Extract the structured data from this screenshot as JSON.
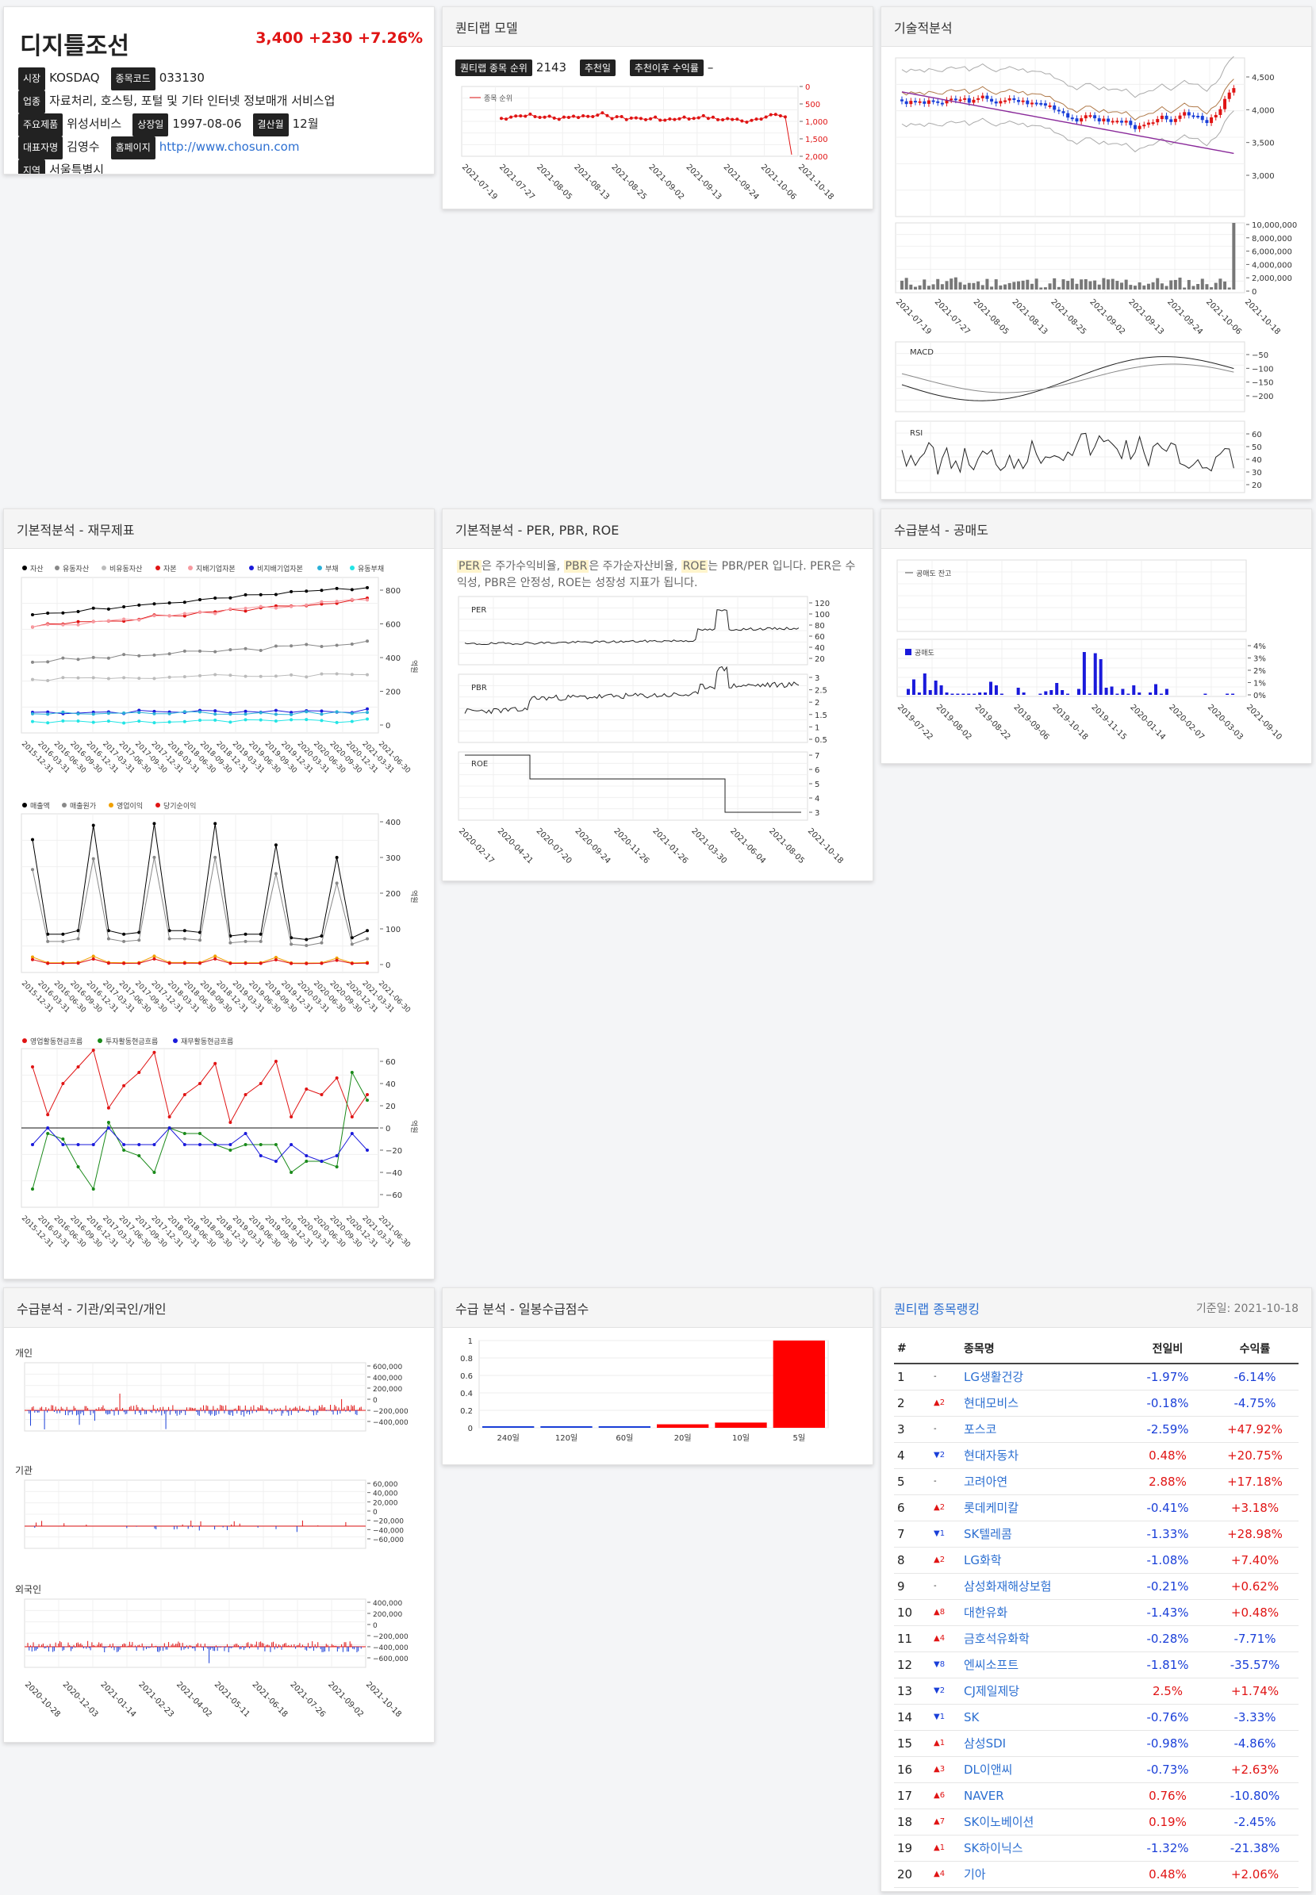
{
  "stock": {
    "name": "디지틀조선",
    "price": "3,400",
    "change": "+230",
    "change_pct": "+7.26%",
    "market_label": "시장",
    "market": "KOSDAQ",
    "code_label": "종목코드",
    "code": "033130",
    "industry_label": "업종",
    "industry": "자료처리, 호스팅, 포털 및 기타 인터넷 정보매개 서비스업",
    "product_label": "주요제품",
    "product": "위성서비스",
    "listing_label": "상장일",
    "listing": "1997-08-06",
    "settle_label": "결산월",
    "settle": "12월",
    "ceo_label": "대표자명",
    "ceo": "김영수",
    "home_label": "홈페이지",
    "home": "http://www.chosun.com",
    "region_label": "지역",
    "region": "서울특별시"
  },
  "model": {
    "title": "퀀티랩 모델",
    "rank_label": "퀀티랩 종목 순위",
    "rank": "2143",
    "rec_label": "추천일",
    "rec_return_label": "추천이후 수익률",
    "rec_return": "–",
    "legend": "종목 순위",
    "yticks": [
      "0",
      "500",
      "1,000",
      "1,500",
      "2,000"
    ],
    "xticks": [
      "2021-07-19",
      "2021-07-27",
      "2021-08-05",
      "2021-08-13",
      "2021-08-25",
      "2021-09-02",
      "2021-09-13",
      "2021-09-24",
      "2021-10-06",
      "2021-10-18"
    ]
  },
  "tech": {
    "title": "기술적분석",
    "price_ticks": [
      "4,500",
      "4,000",
      "3,500",
      "3,000"
    ],
    "vol_ticks": [
      "10,000,000",
      "8,000,000",
      "6,000,000",
      "4,000,000",
      "2,000,000",
      "0"
    ],
    "macd_label": "MACD",
    "macd_ticks": [
      "−50",
      "−100",
      "−150",
      "−200"
    ],
    "rsi_label": "RSI",
    "rsi_ticks": [
      "60",
      "50",
      "40",
      "30",
      "20"
    ],
    "xticks": [
      "2021-07-19",
      "2021-07-27",
      "2021-08-05",
      "2021-08-13",
      "2021-08-25",
      "2021-09-02",
      "2021-09-13",
      "2021-09-24",
      "2021-10-06",
      "2021-10-18"
    ]
  },
  "fin": {
    "title": "기본적분석 - 재무제표",
    "legend1": [
      "자산",
      "유동자산",
      "비유동자산",
      "자본",
      "지배기업자본",
      "비지배기업자본",
      "부채",
      "유동부채"
    ],
    "legend1_colors": [
      "#000000",
      "#888888",
      "#bbbbbb",
      "#e01414",
      "#f79aa0",
      "#1a1adb",
      "#2ab0d8",
      "#22e5e5"
    ],
    "ticks1": [
      "800",
      "600",
      "400",
      "200",
      "0"
    ],
    "legend2": [
      "매출액",
      "매출원가",
      "영업이익",
      "당기순이익"
    ],
    "legend2_colors": [
      "#000000",
      "#888888",
      "#f0a000",
      "#e01414"
    ],
    "ticks2": [
      "400",
      "300",
      "200",
      "100",
      "0"
    ],
    "legend3": [
      "영업활동현금흐름",
      "투자활동현금흐름",
      "재무활동현금흐름"
    ],
    "legend3_colors": [
      "#e01414",
      "#1a8a1a",
      "#1a1adb"
    ],
    "ticks3": [
      "60",
      "40",
      "20",
      "0",
      "−20",
      "−40",
      "−60"
    ],
    "unit": "억원",
    "xticks": [
      "2015-12-31",
      "2016-03-31",
      "2016-06-30",
      "2016-09-30",
      "2016-12-31",
      "2017-03-31",
      "2017-06-30",
      "2017-09-30",
      "2017-12-31",
      "2018-03-31",
      "2018-06-30",
      "2018-09-30",
      "2018-12-31",
      "2019-03-31",
      "2019-06-30",
      "2019-09-30",
      "2019-12-31",
      "2020-03-31",
      "2020-06-30",
      "2020-09-30",
      "2020-12-31",
      "2021-03-31",
      "2021-06-30"
    ]
  },
  "ratio": {
    "title": "기본적분석 - PER, PBR, ROE",
    "t1": "PER",
    "t2": "은 주가수익비율, ",
    "t3": "PBR",
    "t4": "은 주가순자산비율, ",
    "t5": "ROE",
    "t6": "는 PBR/PER 입니다. PER은 수익성, PBR은 안정성, ROE는 성장성 지표가 됩니다.",
    "per_label": "PER",
    "per_ticks": [
      "120",
      "100",
      "80",
      "60",
      "40",
      "20"
    ],
    "pbr_label": "PBR",
    "pbr_ticks": [
      "3",
      "2.5",
      "2",
      "1.5",
      "1",
      "0.5"
    ],
    "roe_label": "ROE",
    "roe_ticks": [
      "7",
      "6",
      "5",
      "4",
      "3"
    ],
    "xticks": [
      "2020-02-17",
      "2020-04-21",
      "2020-07-20",
      "2020-09-24",
      "2020-11-26",
      "2021-01-26",
      "2021-03-30",
      "2021-06-04",
      "2021-08-05",
      "2021-10-18"
    ]
  },
  "short": {
    "title": "수급분석 - 공매도",
    "bal_label": "공매도 잔고",
    "vol_label": "공매도",
    "ticks": [
      "4%",
      "3%",
      "2%",
      "1%",
      "0%"
    ],
    "xticks": [
      "2019-07-22",
      "2019-08-02",
      "2019-08-22",
      "2019-09-06",
      "2019-10-18",
      "2019-11-15",
      "2020-01-14",
      "2020-02-07",
      "2020-03-03",
      "2021-09-10"
    ]
  },
  "flow": {
    "title": "수급분석 - 기관/외국인/개인",
    "indiv": "개인",
    "inst": "기관",
    "foreign": "외국인",
    "indiv_ticks": [
      "600,000",
      "400,000",
      "200,000",
      "0",
      "−200,000",
      "−400,000"
    ],
    "inst_ticks": [
      "60,000",
      "40,000",
      "20,000",
      "0",
      "−20,000",
      "−40,000",
      "−60,000"
    ],
    "for_ticks": [
      "400,000",
      "200,000",
      "0",
      "−200,000",
      "−400,000",
      "−600,000"
    ],
    "xticks": [
      "2020-10-28",
      "2020-12-03",
      "2021-01-14",
      "2021-02-23",
      "2021-04-02",
      "2021-05-11",
      "2021-06-18",
      "2021-07-26",
      "2021-09-02",
      "2021-10-18"
    ]
  },
  "score": {
    "title": "수급 분석 - 일봉수급점수",
    "yticks": [
      "1",
      "0.8",
      "0.6",
      "0.4",
      "0.2",
      "0"
    ]
  },
  "chart_data": {
    "type": "bar",
    "categories": [
      "240일",
      "120일",
      "60일",
      "20일",
      "10일",
      "5일"
    ],
    "values": [
      0.01,
      0.01,
      0.01,
      0.04,
      0.06,
      1.0
    ],
    "ylim": [
      0,
      1
    ]
  },
  "ranking": {
    "title": "퀀티랩 종목랭킹",
    "date": "기준일: 2021-10-18",
    "h_no": "#",
    "h_name": "종목명",
    "h_prev": "전일비",
    "h_ret": "수익률",
    "rows": [
      {
        "no": "1",
        "mv": "-",
        "d": "n",
        "name": "LG생활건강",
        "prev": "-1.97%",
        "ret": "-6.14%"
      },
      {
        "no": "2",
        "mv": "▲2",
        "d": "u",
        "name": "현대모비스",
        "prev": "-0.18%",
        "ret": "-4.75%"
      },
      {
        "no": "3",
        "mv": "-",
        "d": "n",
        "name": "포스코",
        "prev": "-2.59%",
        "ret": "+47.92%"
      },
      {
        "no": "4",
        "mv": "▼2",
        "d": "d",
        "name": "현대자동차",
        "prev": "0.48%",
        "ret": "+20.75%"
      },
      {
        "no": "5",
        "mv": "-",
        "d": "n",
        "name": "고려아연",
        "prev": "2.88%",
        "ret": "+17.18%"
      },
      {
        "no": "6",
        "mv": "▲2",
        "d": "u",
        "name": "롯데케미칼",
        "prev": "-0.41%",
        "ret": "+3.18%"
      },
      {
        "no": "7",
        "mv": "▼1",
        "d": "d",
        "name": "SK텔레콤",
        "prev": "-1.33%",
        "ret": "+28.98%"
      },
      {
        "no": "8",
        "mv": "▲2",
        "d": "u",
        "name": "LG화학",
        "prev": "-1.08%",
        "ret": "+7.40%"
      },
      {
        "no": "9",
        "mv": "-",
        "d": "n",
        "name": "삼성화재해상보험",
        "prev": "-0.21%",
        "ret": "+0.62%"
      },
      {
        "no": "10",
        "mv": "▲8",
        "d": "u",
        "name": "대한유화",
        "prev": "-1.43%",
        "ret": "+0.48%"
      },
      {
        "no": "11",
        "mv": "▲4",
        "d": "u",
        "name": "금호석유화학",
        "prev": "-0.28%",
        "ret": "-7.71%"
      },
      {
        "no": "12",
        "mv": "▼8",
        "d": "d",
        "name": "엔씨소프트",
        "prev": "-1.81%",
        "ret": "-35.57%"
      },
      {
        "no": "13",
        "mv": "▼2",
        "d": "d",
        "name": "CJ제일제당",
        "prev": "2.5%",
        "ret": "+1.74%"
      },
      {
        "no": "14",
        "mv": "▼1",
        "d": "d",
        "name": "SK",
        "prev": "-0.76%",
        "ret": "-3.33%"
      },
      {
        "no": "15",
        "mv": "▲1",
        "d": "u",
        "name": "삼성SDI",
        "prev": "-0.98%",
        "ret": "-4.86%"
      },
      {
        "no": "16",
        "mv": "▲3",
        "d": "u",
        "name": "DL이앤씨",
        "prev": "-0.73%",
        "ret": "+2.63%"
      },
      {
        "no": "17",
        "mv": "▲6",
        "d": "u",
        "name": "NAVER",
        "prev": "0.76%",
        "ret": "-10.80%"
      },
      {
        "no": "18",
        "mv": "▲7",
        "d": "u",
        "name": "SK이노베이션",
        "prev": "0.19%",
        "ret": "-2.45%"
      },
      {
        "no": "19",
        "mv": "▲1",
        "d": "u",
        "name": "SK하이닉스",
        "prev": "-1.32%",
        "ret": "-21.38%"
      },
      {
        "no": "20",
        "mv": "▲4",
        "d": "u",
        "name": "기아",
        "prev": "0.48%",
        "ret": "+2.06%"
      }
    ]
  }
}
